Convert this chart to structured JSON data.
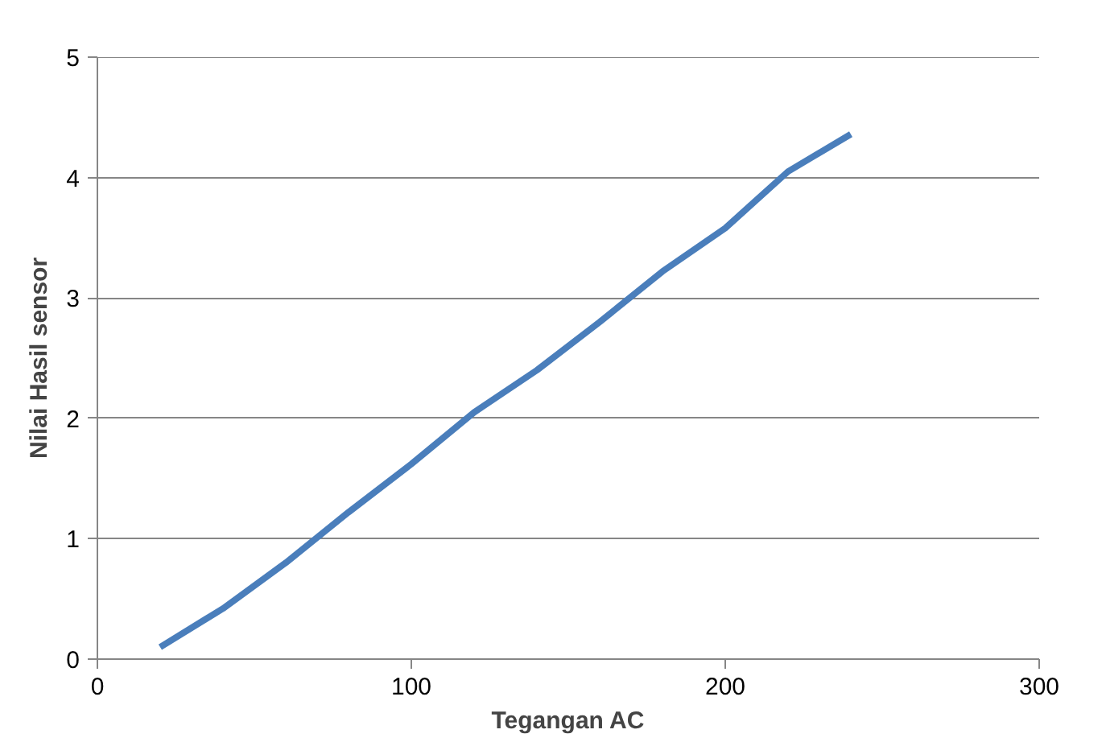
{
  "chart_data": {
    "type": "line",
    "xlabel": "Tegangan AC",
    "ylabel": "Nilai Hasil sensor",
    "x": [
      20,
      40,
      60,
      80,
      100,
      120,
      140,
      160,
      180,
      200,
      220,
      240
    ],
    "series": [
      {
        "color": "#4a7ebb",
        "values": [
          0.1,
          0.42,
          0.8,
          1.22,
          1.62,
          2.05,
          2.4,
          2.8,
          3.22,
          3.58,
          4.05,
          4.36
        ]
      }
    ],
    "xlim": [
      0,
      300
    ],
    "xticks": [
      0,
      100,
      200,
      300
    ],
    "ylim": [
      0,
      5
    ],
    "yticks": [
      0,
      1,
      2,
      3,
      4,
      5
    ],
    "grid": "y",
    "marker": "none",
    "line_style": "solid"
  }
}
